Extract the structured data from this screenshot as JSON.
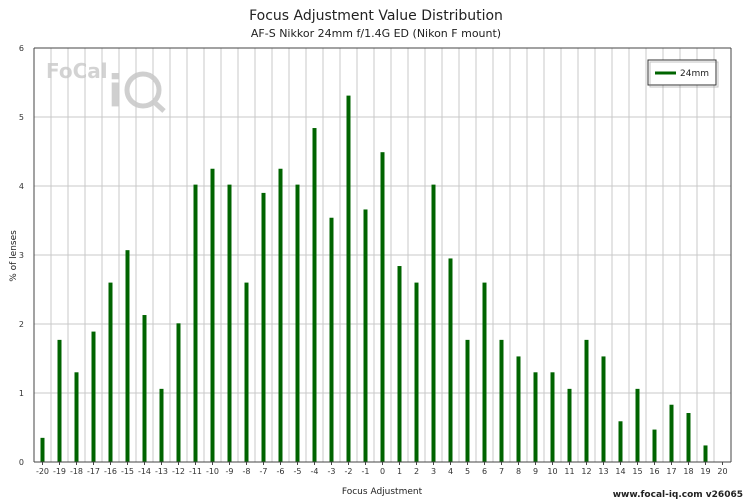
{
  "chart_data": {
    "type": "bar",
    "title": "Focus Adjustment Value Distribution",
    "subtitle": "AF-S Nikkor 24mm f/1.4G ED (Nikon F mount)",
    "xlabel": "Focus Adjustment",
    "ylabel": "% of lenses",
    "categories": [
      "-20",
      "-19",
      "-18",
      "-17",
      "-16",
      "-15",
      "-14",
      "-13",
      "-12",
      "-11",
      "-10",
      "-9",
      "-8",
      "-7",
      "-6",
      "-5",
      "-4",
      "-3",
      "-2",
      "-1",
      "0",
      "1",
      "2",
      "3",
      "4",
      "5",
      "6",
      "7",
      "8",
      "9",
      "10",
      "11",
      "12",
      "13",
      "14",
      "15",
      "16",
      "17",
      "18",
      "19",
      "20"
    ],
    "series": [
      {
        "name": "24mm",
        "color": "#006400",
        "values": [
          0.35,
          1.77,
          1.3,
          1.89,
          2.6,
          3.07,
          2.13,
          1.06,
          2.01,
          4.02,
          4.25,
          4.02,
          2.6,
          3.9,
          4.25,
          4.02,
          4.84,
          3.54,
          5.31,
          3.66,
          4.49,
          2.84,
          2.6,
          4.02,
          2.95,
          1.77,
          2.6,
          1.77,
          1.53,
          1.3,
          1.3,
          1.06,
          1.77,
          1.53,
          0.59,
          1.06,
          0.47,
          0.83,
          0.71,
          0.24,
          0
        ]
      }
    ],
    "ylim": [
      0,
      6
    ],
    "yticks": [
      0,
      1,
      2,
      3,
      4,
      5,
      6
    ],
    "grid": true,
    "legend_position": "top-right"
  },
  "watermark": {
    "brand": "FoCal iQ",
    "icon": "focal-iq-logo"
  },
  "footer": "www.focal-iq.com  v26065"
}
